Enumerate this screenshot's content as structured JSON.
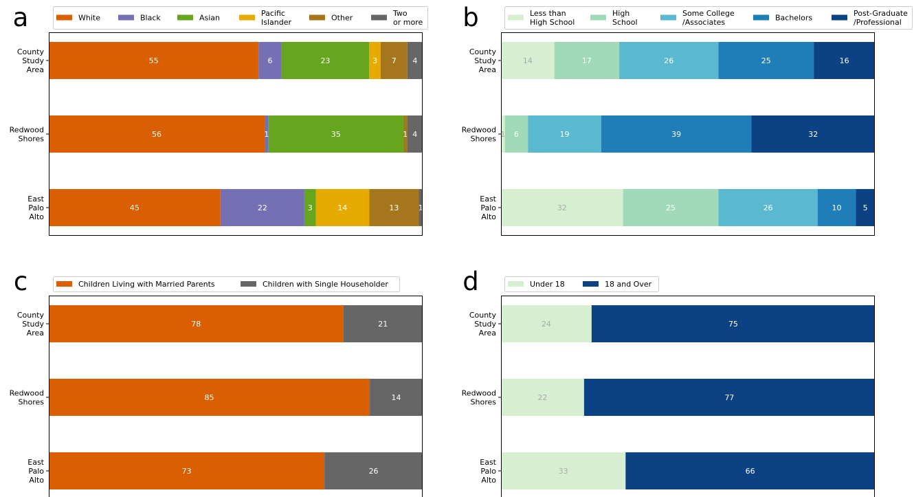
{
  "chart_data": [
    {
      "panel_letter": "a",
      "type": "bar",
      "orientation": "horizontal",
      "stacked": true,
      "categories": [
        [
          "County",
          "Study",
          "Area"
        ],
        [
          "Redwood",
          "Shores"
        ],
        [
          "East",
          "Palo",
          "Alto"
        ]
      ],
      "series": [
        {
          "name": [
            "White"
          ],
          "color": "#d95f02",
          "values": [
            55,
            56,
            45
          ]
        },
        {
          "name": [
            "Black"
          ],
          "color": "#7570b3",
          "values": [
            6,
            1,
            22
          ]
        },
        {
          "name": [
            "Asian"
          ],
          "color": "#66a61e",
          "values": [
            23,
            35,
            3
          ]
        },
        {
          "name": [
            "Pacific",
            "Islander"
          ],
          "color": "#e6ab02",
          "values": [
            3,
            0,
            14
          ]
        },
        {
          "name": [
            "Other"
          ],
          "color": "#a6761d",
          "values": [
            7,
            1,
            13
          ]
        },
        {
          "name": [
            "Two",
            "or more"
          ],
          "color": "#666666",
          "values": [
            4,
            4,
            1
          ]
        }
      ],
      "label_colors": [
        "#ffffff",
        "#ffffff",
        "#ffffff"
      ],
      "legend_placement": "top",
      "grid": false
    },
    {
      "panel_letter": "b",
      "type": "bar",
      "orientation": "horizontal",
      "stacked": true,
      "categories": [
        [
          "County",
          "Study",
          "Area"
        ],
        [
          "Redwood",
          "Shores"
        ],
        [
          "East",
          "Palo",
          "Alto"
        ]
      ],
      "series": [
        {
          "name": [
            "Less than",
            "High School"
          ],
          "color": "#d6efd0",
          "values": [
            14,
            1,
            32
          ]
        },
        {
          "name": [
            "High",
            "School"
          ],
          "color": "#a1dab8",
          "values": [
            17,
            6,
            25
          ]
        },
        {
          "name": [
            "Some College",
            "/Associates"
          ],
          "color": "#5ab8d0",
          "values": [
            26,
            19,
            26
          ]
        },
        {
          "name": [
            "Bachelors"
          ],
          "color": "#1f7db7",
          "values": [
            25,
            39,
            10
          ]
        },
        {
          "name": [
            "Post-Graduate",
            "/Professional"
          ],
          "color": "#0c4184",
          "values": [
            16,
            32,
            5
          ]
        }
      ],
      "label_colors": [
        "#aaaaaa",
        "#ffffff",
        "#ffffff",
        "#ffffff",
        "#ffffff"
      ],
      "legend_placement": "top",
      "grid": false
    },
    {
      "panel_letter": "c",
      "type": "bar",
      "orientation": "horizontal",
      "stacked": true,
      "categories": [
        [
          "County",
          "Study",
          "Area"
        ],
        [
          "Redwood",
          "Shores"
        ],
        [
          "East",
          "Palo",
          "Alto"
        ]
      ],
      "series": [
        {
          "name": [
            "Children Living with Married Parents"
          ],
          "color": "#d95f02",
          "values": [
            78,
            85,
            73
          ]
        },
        {
          "name": [
            "Children with Single Householder"
          ],
          "color": "#666666",
          "values": [
            21,
            14,
            26
          ]
        }
      ],
      "label_colors": [
        "#ffffff",
        "#ffffff"
      ],
      "legend_placement": "top",
      "grid": false
    },
    {
      "panel_letter": "d",
      "type": "bar",
      "orientation": "horizontal",
      "stacked": true,
      "categories": [
        [
          "County",
          "Study",
          "Area"
        ],
        [
          "Redwood",
          "Shores"
        ],
        [
          "East",
          "Palo",
          "Alto"
        ]
      ],
      "series": [
        {
          "name": [
            "Under 18"
          ],
          "color": "#d6efd0",
          "values": [
            24,
            22,
            33
          ]
        },
        {
          "name": [
            "18 and Over"
          ],
          "color": "#0c4184",
          "values": [
            75,
            77,
            66
          ]
        }
      ],
      "label_colors": [
        "#aaaaaa",
        "#ffffff"
      ],
      "legend_placement": "top",
      "grid": false
    }
  ]
}
